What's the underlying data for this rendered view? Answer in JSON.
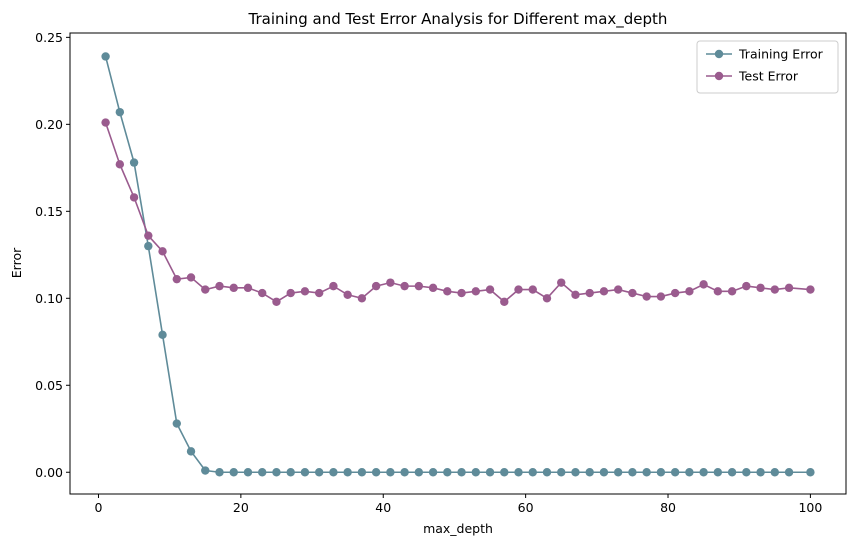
{
  "chart_data": {
    "type": "line",
    "title": "Training and Test Error Analysis for Different max_depth",
    "xlabel": "max_depth",
    "ylabel": "Error",
    "xlim": [
      -4,
      105
    ],
    "ylim": [
      -0.0125,
      0.2525
    ],
    "xticks": [
      0,
      20,
      40,
      60,
      80,
      100
    ],
    "xtick_labels": [
      "0",
      "20",
      "40",
      "60",
      "80",
      "100"
    ],
    "yticks": [
      0.0,
      0.05,
      0.1,
      0.15,
      0.2,
      0.25
    ],
    "ytick_labels": [
      "0.00",
      "0.05",
      "0.10",
      "0.15",
      "0.20",
      "0.25"
    ],
    "grid": false,
    "legend_position": "top-right",
    "x": [
      1,
      3,
      5,
      7,
      9,
      11,
      13,
      15,
      17,
      19,
      21,
      23,
      25,
      27,
      29,
      31,
      33,
      35,
      37,
      39,
      41,
      43,
      45,
      47,
      49,
      51,
      53,
      55,
      57,
      59,
      61,
      63,
      65,
      67,
      69,
      71,
      73,
      75,
      77,
      79,
      81,
      83,
      85,
      87,
      89,
      91,
      93,
      95,
      97,
      100
    ],
    "series": [
      {
        "name": "Training Error",
        "color": "#5f8b99",
        "values": [
          0.239,
          0.207,
          0.178,
          0.13,
          0.079,
          0.028,
          0.012,
          0.001,
          0.0,
          0.0,
          0.0,
          0.0,
          0.0,
          0.0,
          0.0,
          0.0,
          0.0,
          0.0,
          0.0,
          0.0,
          0.0,
          0.0,
          0.0,
          0.0,
          0.0,
          0.0,
          0.0,
          0.0,
          0.0,
          0.0,
          0.0,
          0.0,
          0.0,
          0.0,
          0.0,
          0.0,
          0.0,
          0.0,
          0.0,
          0.0,
          0.0,
          0.0,
          0.0,
          0.0,
          0.0,
          0.0,
          0.0,
          0.0,
          0.0,
          0.0
        ]
      },
      {
        "name": "Test Error",
        "color": "#9a5b8e",
        "values": [
          0.201,
          0.177,
          0.158,
          0.136,
          0.127,
          0.111,
          0.112,
          0.105,
          0.107,
          0.106,
          0.106,
          0.103,
          0.098,
          0.103,
          0.104,
          0.103,
          0.107,
          0.102,
          0.1,
          0.107,
          0.109,
          0.107,
          0.107,
          0.106,
          0.104,
          0.103,
          0.104,
          0.105,
          0.098,
          0.105,
          0.105,
          0.1,
          0.109,
          0.102,
          0.103,
          0.104,
          0.105,
          0.103,
          0.101,
          0.101,
          0.103,
          0.104,
          0.108,
          0.104,
          0.104,
          0.107,
          0.106,
          0.105,
          0.106,
          0.105
        ]
      }
    ]
  }
}
